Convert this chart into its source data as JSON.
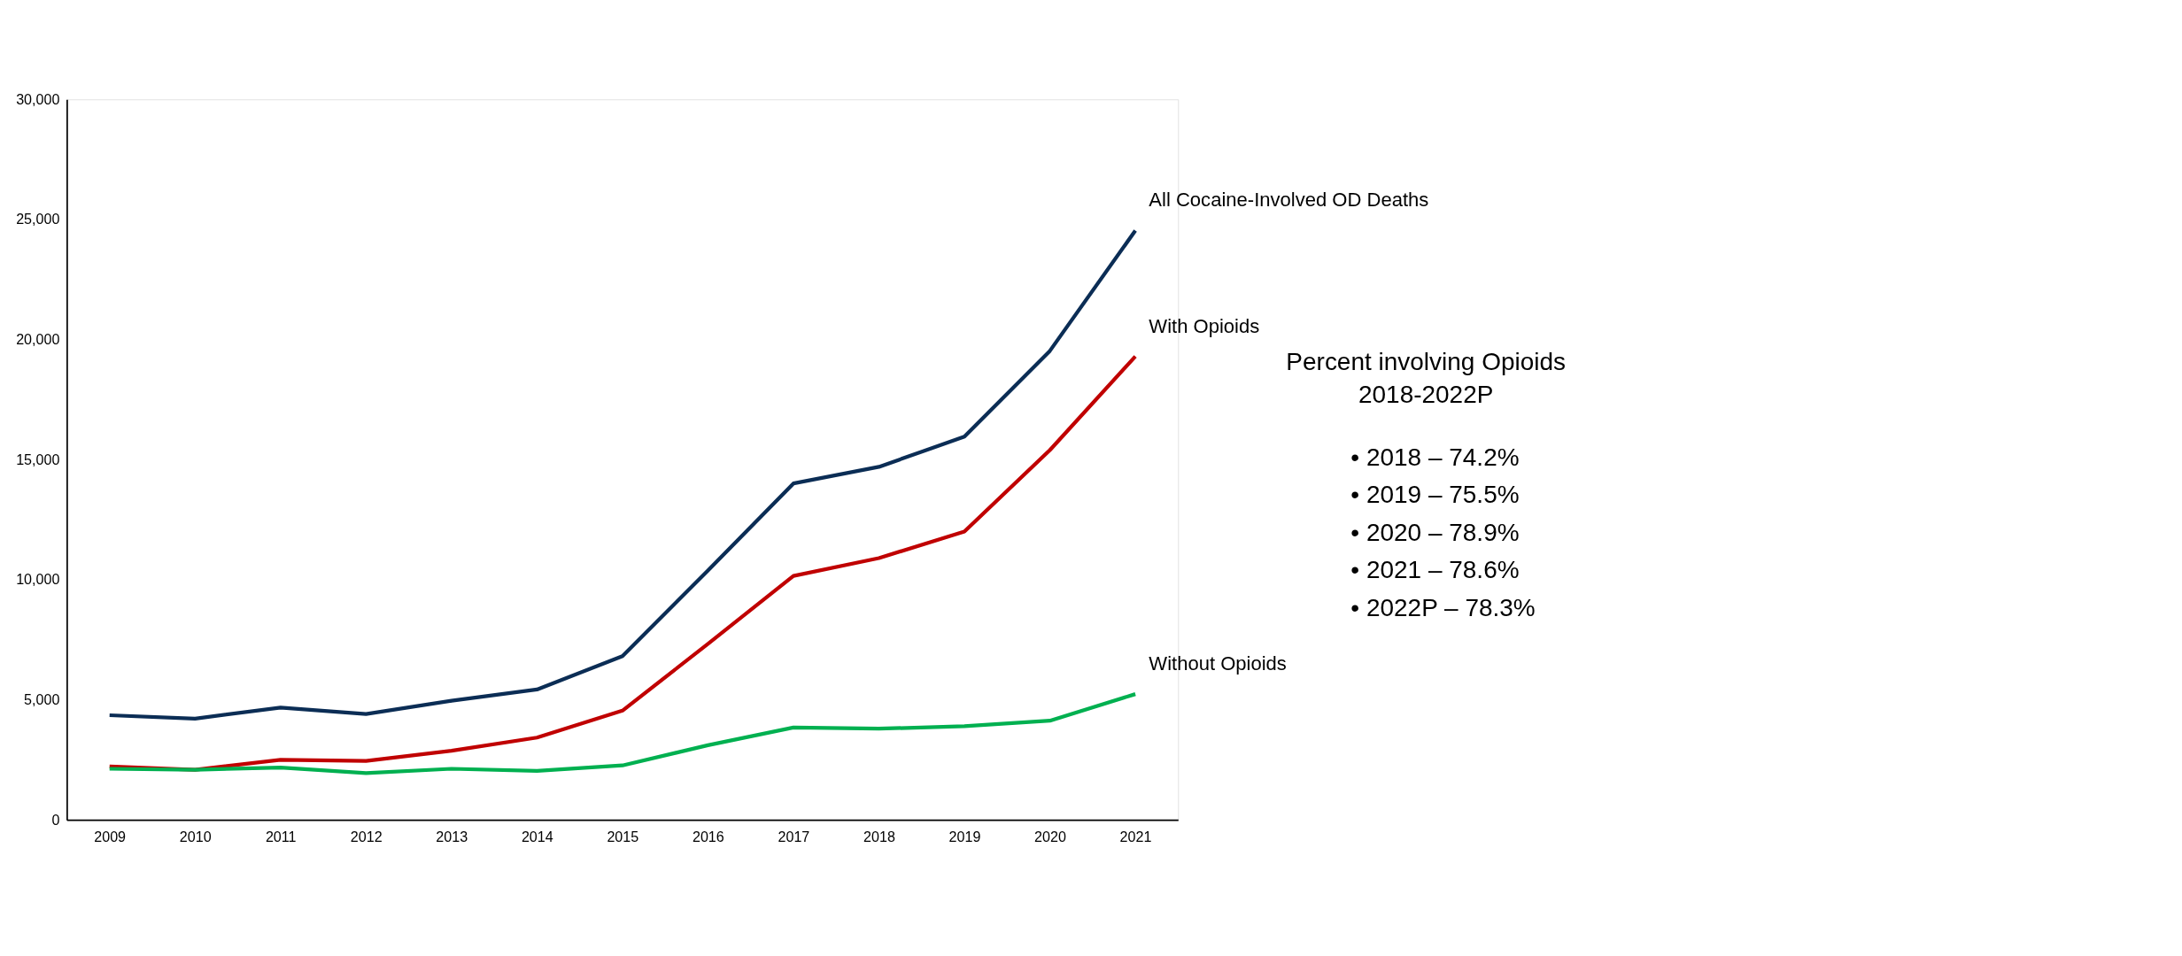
{
  "chart_data": {
    "type": "line",
    "categories": [
      "2009",
      "2010",
      "2011",
      "2012",
      "2013",
      "2014",
      "2015",
      "2016",
      "2017",
      "2018",
      "2019",
      "2020",
      "2021"
    ],
    "series": [
      {
        "name": "All Cocaine-Involved OD Deaths",
        "color": "#0b2d55",
        "values": [
          4360,
          4220,
          4680,
          4410,
          4960,
          5430,
          6820,
          10390,
          14010,
          14700,
          15960,
          19530,
          24540
        ]
      },
      {
        "name": "With Opioids",
        "color": "#c00000",
        "values": [
          2230,
          2090,
          2500,
          2460,
          2880,
          3430,
          4550,
          7330,
          10160,
          10900,
          12010,
          15400,
          19300
        ]
      },
      {
        "name": "Without Opioids",
        "color": "#00b050",
        "values": [
          2130,
          2090,
          2180,
          1950,
          2130,
          2040,
          2270,
          3110,
          3850,
          3800,
          3900,
          4130,
          5240
        ]
      }
    ],
    "ylim": [
      0,
      30000
    ],
    "yticks": [
      0,
      {
        "value": 5000,
        "label": "5,000"
      },
      {
        "value": 10000,
        "label": "10,000"
      },
      {
        "value": 15000,
        "label": "15,000"
      },
      {
        "value": 20000,
        "label": "20,000"
      },
      {
        "value": 25000,
        "label": "25,000"
      },
      {
        "value": 30000,
        "label": "30,000"
      }
    ],
    "grid": false,
    "marker": "none",
    "line_style": "solid",
    "annotations": [
      "Percent involving Opioids",
      "2018-2022P",
      "•    2018 – 74.2%",
      "•    2019 – 75.5%",
      "•    2020 – 78.9%",
      "•    2021 – 78.6%",
      "•    2022P – 78.3%"
    ]
  }
}
